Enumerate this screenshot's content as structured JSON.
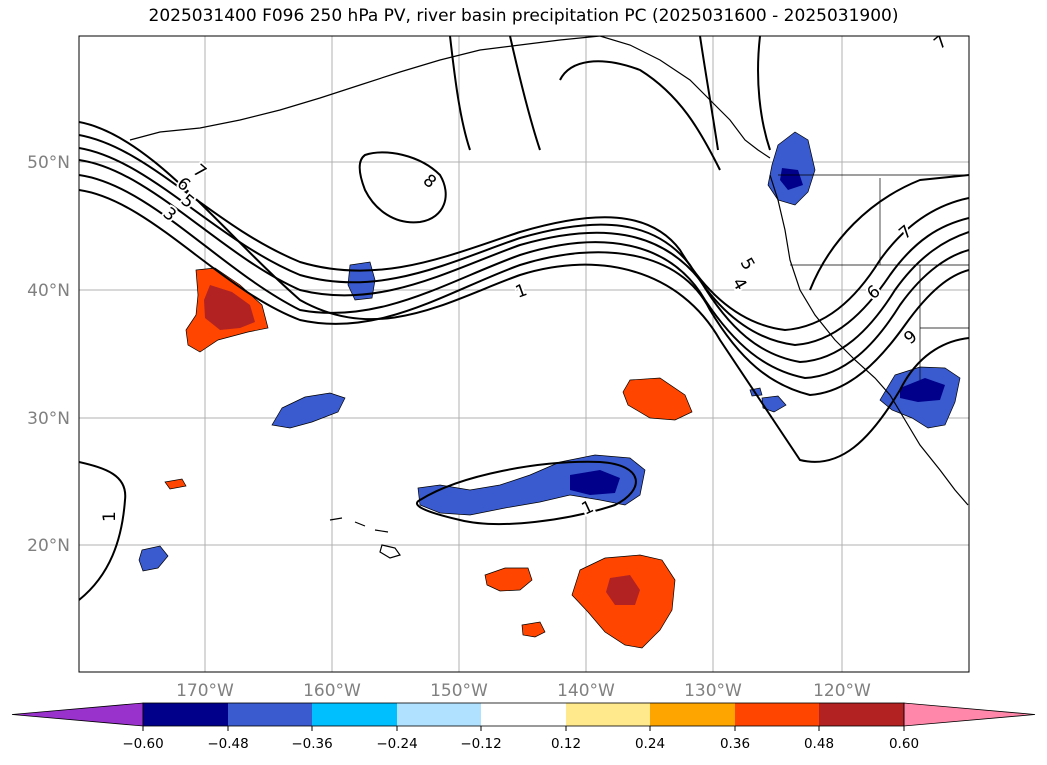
{
  "title": "2025031400 F096 250 hPa PV, river basin precipitation PC (2025031600 - 2025031900)",
  "axes": {
    "lat_labels": [
      "50°N",
      "40°N",
      "30°N",
      "20°N"
    ],
    "lon_labels": [
      "170°W",
      "160°W",
      "150°W",
      "140°W",
      "130°W",
      "120°W"
    ],
    "label_color": "#808080"
  },
  "colorbar": {
    "ticks": [
      "−0.60",
      "−0.48",
      "−0.36",
      "−0.24",
      "−0.12",
      "0.12",
      "0.24",
      "0.36",
      "0.48",
      "0.60"
    ],
    "colors": [
      "#9932cc",
      "#00008b",
      "#3a5bcf",
      "#00bfff",
      "#b0e2ff",
      "#ffffff",
      "#ffe98c",
      "#ffa500",
      "#ff4500",
      "#b22222",
      "#ff88aa"
    ]
  },
  "contour_labels": [
    "7",
    "6",
    "5",
    "3",
    "8",
    "1",
    "5",
    "4",
    "7",
    "6",
    "9",
    "1",
    "1",
    "7"
  ],
  "colors": {
    "negative": "#3a5bcf",
    "negative_strong": "#00008b",
    "positive": "#ff4500",
    "positive_strong": "#b22222"
  }
}
